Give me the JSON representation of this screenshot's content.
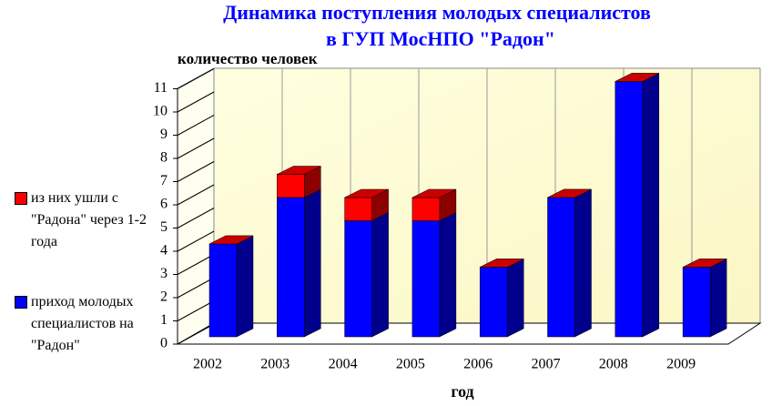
{
  "chart_data": {
    "type": "bar3d_stacked",
    "title_lines": [
      "Динамика поступления молодых специалистов",
      "в ГУП МосНПО \"Радон\""
    ],
    "y_label": "количество человек",
    "x_label": "год",
    "categories": [
      "2002",
      "2003",
      "2004",
      "2005",
      "2006",
      "2007",
      "2008",
      "2009"
    ],
    "series": [
      {
        "name": "приход молодых специалистов на \"Радон\"",
        "color": "#0000ff",
        "values": [
          4,
          6,
          5,
          5,
          3,
          6,
          11,
          3
        ]
      },
      {
        "name": "из них ушли с \"Радона\" через 1-2 года",
        "color": "#ff0000",
        "values": [
          0,
          1,
          1,
          1,
          0,
          0,
          0,
          0
        ]
      }
    ],
    "ylim": [
      0,
      11
    ],
    "yticks": [
      0,
      1,
      2,
      3,
      4,
      5,
      6,
      7,
      8,
      9,
      10,
      11
    ],
    "grid": true
  }
}
